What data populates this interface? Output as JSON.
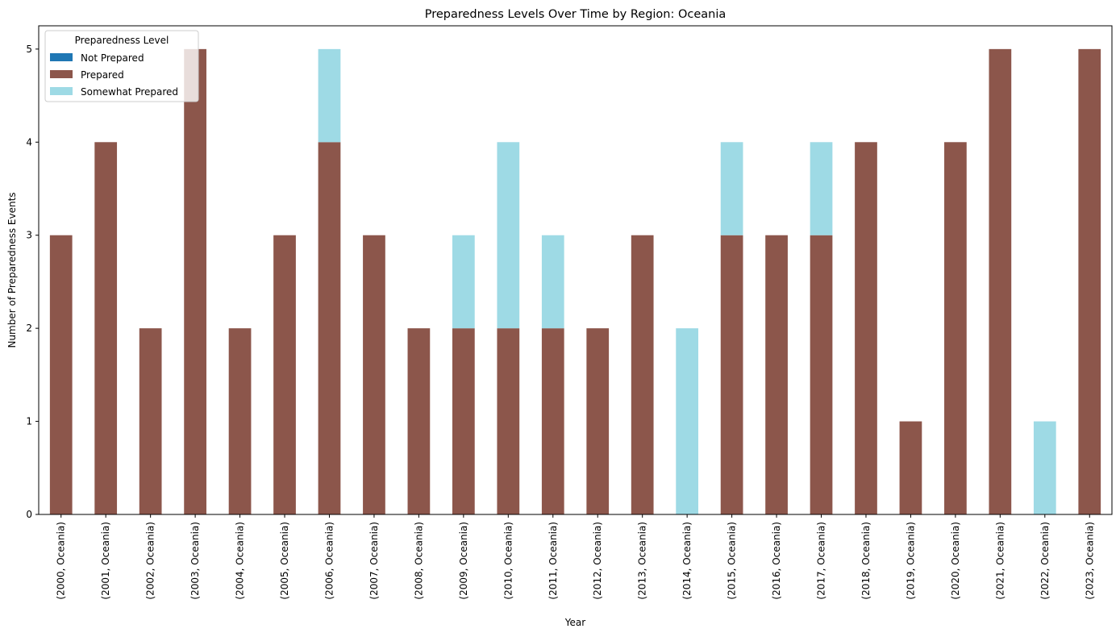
{
  "chart_data": {
    "type": "bar",
    "stacked": true,
    "title": "Preparedness Levels Over Time by Region: Oceania",
    "xlabel": "Year",
    "ylabel": "Number of Preparedness Events",
    "ylim": [
      0,
      5.25
    ],
    "yticks": [
      0,
      1,
      2,
      3,
      4,
      5
    ],
    "grid": false,
    "legend": {
      "title": "Preparedness Level",
      "placement": "top-left"
    },
    "categories": [
      "(2000, Oceania)",
      "(2001, Oceania)",
      "(2002, Oceania)",
      "(2003, Oceania)",
      "(2004, Oceania)",
      "(2005, Oceania)",
      "(2006, Oceania)",
      "(2007, Oceania)",
      "(2008, Oceania)",
      "(2009, Oceania)",
      "(2010, Oceania)",
      "(2011, Oceania)",
      "(2012, Oceania)",
      "(2013, Oceania)",
      "(2014, Oceania)",
      "(2015, Oceania)",
      "(2016, Oceania)",
      "(2017, Oceania)",
      "(2018, Oceania)",
      "(2019, Oceania)",
      "(2020, Oceania)",
      "(2021, Oceania)",
      "(2022, Oceania)",
      "(2023, Oceania)"
    ],
    "series": [
      {
        "name": "Not Prepared",
        "color": "#1f77b4",
        "values": [
          0,
          0,
          0,
          0,
          0,
          0,
          0,
          0,
          0,
          0,
          0,
          0,
          0,
          0,
          0,
          0,
          0,
          0,
          0,
          0,
          0,
          0,
          0,
          0
        ]
      },
      {
        "name": "Prepared",
        "color": "#8c564b",
        "values": [
          3,
          4,
          2,
          5,
          2,
          3,
          4,
          3,
          2,
          2,
          2,
          2,
          2,
          3,
          0,
          3,
          3,
          3,
          4,
          1,
          4,
          5,
          0,
          5
        ]
      },
      {
        "name": "Somewhat Prepared",
        "color": "#9edae5",
        "values": [
          0,
          0,
          0,
          0,
          0,
          0,
          1,
          0,
          0,
          1,
          2,
          1,
          0,
          0,
          2,
          1,
          0,
          1,
          0,
          0,
          0,
          0,
          1,
          0
        ]
      }
    ]
  }
}
